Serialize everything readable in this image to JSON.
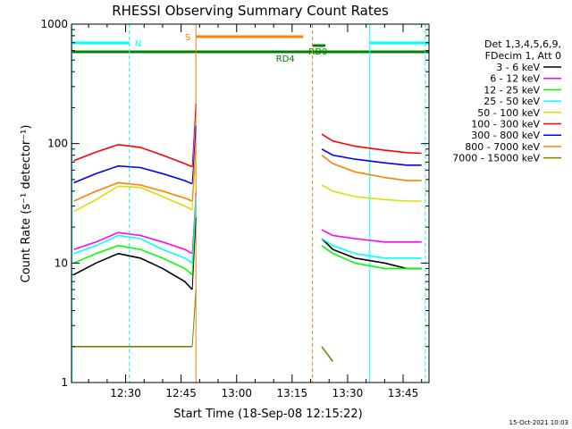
{
  "chart_data": {
    "type": "line",
    "title": "RHESSI Observing Summary Count Rates",
    "xlabel": "Start Time (18-Sep-08 12:15:22)",
    "ylabel": "Count Rate (s⁻¹ detector⁻¹)",
    "y_scale": "log",
    "ylim": [
      1,
      1000
    ],
    "xlim": [
      "12:15:22",
      "13:52:00"
    ],
    "y_ticks": [
      {
        "value": 1,
        "label": "1"
      },
      {
        "value": 10,
        "label": "10"
      },
      {
        "value": 100,
        "label": "100"
      },
      {
        "value": 1000,
        "label": "1000"
      }
    ],
    "x_ticks": [
      {
        "value": "12:30",
        "label": "12:30"
      },
      {
        "value": "12:45",
        "label": "12:45"
      },
      {
        "value": "13:00",
        "label": "13:00"
      },
      {
        "value": "13:15",
        "label": "13:15"
      },
      {
        "value": "13:30",
        "label": "13:30"
      },
      {
        "value": "13:45",
        "label": "13:45"
      }
    ],
    "legend_header": [
      "Det 1,3,4,5,6,9,",
      "FDecim 1, Att 0"
    ],
    "legend_position": "right",
    "series": [
      {
        "name": "3 - 6 keV",
        "color": "#000000",
        "data": [
          [
            "12:16",
            8
          ],
          [
            "12:22",
            10
          ],
          [
            "12:28",
            12
          ],
          [
            "12:34",
            11
          ],
          [
            "12:40",
            9
          ],
          [
            "12:46",
            7
          ],
          [
            "12:48",
            6
          ],
          [
            "13:23",
            16
          ],
          [
            "13:26",
            13
          ],
          [
            "13:32",
            11
          ],
          [
            "13:40",
            10
          ],
          [
            "13:46",
            9
          ],
          [
            "13:50",
            9
          ]
        ]
      },
      {
        "name": "6 - 12 keV",
        "color": "#ff00ff",
        "data": [
          [
            "12:16",
            13
          ],
          [
            "12:22",
            15
          ],
          [
            "12:28",
            18
          ],
          [
            "12:34",
            17
          ],
          [
            "12:40",
            15
          ],
          [
            "12:46",
            13
          ],
          [
            "12:48",
            12
          ],
          [
            "13:23",
            19
          ],
          [
            "13:26",
            17
          ],
          [
            "13:32",
            16
          ],
          [
            "13:40",
            15
          ],
          [
            "13:46",
            15
          ],
          [
            "13:50",
            15
          ]
        ]
      },
      {
        "name": "12 - 25 keV",
        "color": "#00ff00",
        "data": [
          [
            "12:16",
            10
          ],
          [
            "12:22",
            12
          ],
          [
            "12:28",
            14
          ],
          [
            "12:34",
            13
          ],
          [
            "12:40",
            11
          ],
          [
            "12:46",
            9
          ],
          [
            "12:48",
            8
          ],
          [
            "13:23",
            14
          ],
          [
            "13:26",
            12
          ],
          [
            "13:32",
            10
          ],
          [
            "13:40",
            9
          ],
          [
            "13:46",
            9
          ],
          [
            "13:50",
            9
          ]
        ]
      },
      {
        "name": "25 - 50 keV",
        "color": "#00ffff",
        "data": [
          [
            "12:16",
            12
          ],
          [
            "12:22",
            14
          ],
          [
            "12:28",
            17
          ],
          [
            "12:34",
            16
          ],
          [
            "12:40",
            13
          ],
          [
            "12:46",
            11
          ],
          [
            "12:48",
            10
          ],
          [
            "13:23",
            16
          ],
          [
            "13:26",
            14
          ],
          [
            "13:32",
            12
          ],
          [
            "13:40",
            11
          ],
          [
            "13:46",
            11
          ],
          [
            "13:50",
            11
          ]
        ]
      },
      {
        "name": "50 - 100 keV",
        "color": "#dddd00",
        "data": [
          [
            "12:16",
            27
          ],
          [
            "12:22",
            34
          ],
          [
            "12:28",
            44
          ],
          [
            "12:34",
            43
          ],
          [
            "12:40",
            36
          ],
          [
            "12:46",
            30
          ],
          [
            "12:48",
            28
          ],
          [
            "13:23",
            45
          ],
          [
            "13:26",
            40
          ],
          [
            "13:32",
            36
          ],
          [
            "13:40",
            34
          ],
          [
            "13:46",
            33
          ],
          [
            "13:50",
            33
          ]
        ]
      },
      {
        "name": "100 - 300 keV",
        "color": "#ff0000",
        "data": [
          [
            "12:16",
            72
          ],
          [
            "12:22",
            85
          ],
          [
            "12:28",
            98
          ],
          [
            "12:34",
            93
          ],
          [
            "12:40",
            80
          ],
          [
            "12:46",
            68
          ],
          [
            "12:48",
            64
          ],
          [
            "13:23",
            120
          ],
          [
            "13:26",
            105
          ],
          [
            "13:32",
            95
          ],
          [
            "13:40",
            88
          ],
          [
            "13:46",
            84
          ],
          [
            "13:50",
            83
          ]
        ]
      },
      {
        "name": "300 - 800 keV",
        "color": "#0000ff",
        "data": [
          [
            "12:16",
            47
          ],
          [
            "12:22",
            56
          ],
          [
            "12:28",
            65
          ],
          [
            "12:34",
            63
          ],
          [
            "12:40",
            56
          ],
          [
            "12:46",
            49
          ],
          [
            "12:48",
            46
          ],
          [
            "13:23",
            90
          ],
          [
            "13:26",
            80
          ],
          [
            "13:32",
            74
          ],
          [
            "13:40",
            69
          ],
          [
            "13:46",
            66
          ],
          [
            "13:50",
            66
          ]
        ]
      },
      {
        "name": "800 - 7000 keV",
        "color": "#ff8000",
        "data": [
          [
            "12:16",
            33
          ],
          [
            "12:22",
            40
          ],
          [
            "12:28",
            47
          ],
          [
            "12:34",
            45
          ],
          [
            "12:40",
            40
          ],
          [
            "12:46",
            35
          ],
          [
            "12:48",
            33
          ],
          [
            "13:23",
            80
          ],
          [
            "13:26",
            68
          ],
          [
            "13:32",
            58
          ],
          [
            "13:40",
            52
          ],
          [
            "13:46",
            49
          ],
          [
            "13:50",
            49
          ]
        ]
      },
      {
        "name": "7000 - 15000 keV",
        "color": "#808000",
        "data": [
          [
            "12:16",
            2
          ],
          [
            "12:22",
            2
          ],
          [
            "12:28",
            2
          ],
          [
            "12:34",
            2
          ],
          [
            "12:40",
            2
          ],
          [
            "12:46",
            2
          ],
          [
            "12:48",
            2
          ],
          [
            "13:23",
            2
          ],
          [
            "13:26",
            1.5
          ]
        ]
      }
    ],
    "annotations": [
      {
        "text": "N",
        "color": "#00ffff"
      },
      {
        "text": "S",
        "color": "#ff8000"
      },
      {
        "text": "RD4",
        "color": "#008000"
      },
      {
        "text": "RD0",
        "color": "#008000"
      }
    ],
    "timestamp": "15-Oct-2021 10:03"
  }
}
